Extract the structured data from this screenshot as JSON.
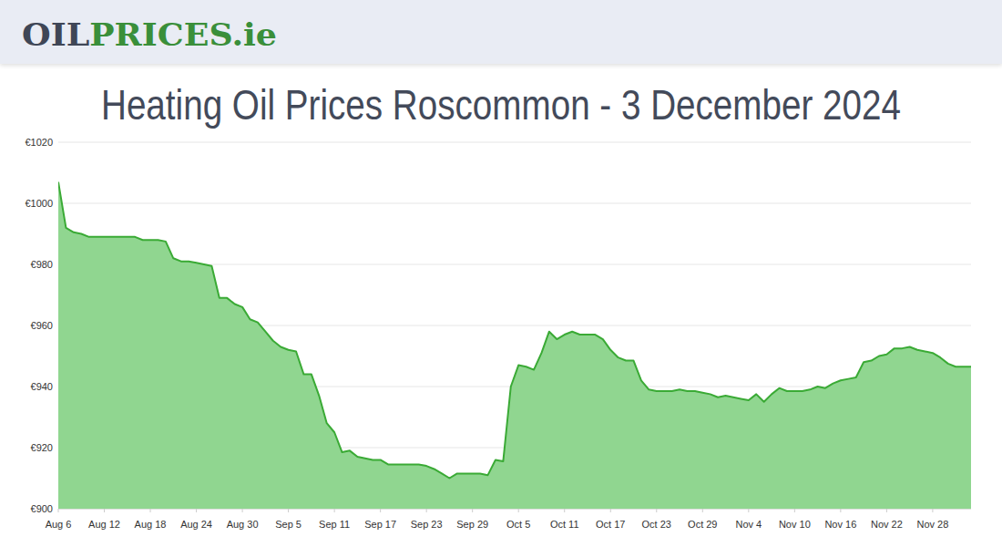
{
  "logo": {
    "dark": "OIL",
    "green": "PRICES.ie"
  },
  "chart_data": {
    "type": "area",
    "title": "Heating Oil Prices Roscommon - 3 December 2024",
    "color": "#3aaa35",
    "grid": true,
    "categories": [
      "Aug 6",
      null,
      null,
      null,
      null,
      null,
      "Aug 12",
      null,
      null,
      null,
      null,
      null,
      "Aug 18",
      null,
      null,
      null,
      null,
      null,
      "Aug 24",
      null,
      null,
      null,
      null,
      null,
      "Aug 30",
      null,
      null,
      null,
      null,
      null,
      "Sep 5",
      null,
      null,
      null,
      null,
      null,
      "Sep 11",
      null,
      null,
      null,
      null,
      null,
      "Sep 17",
      null,
      null,
      null,
      null,
      null,
      "Sep 23",
      null,
      null,
      null,
      null,
      null,
      "Sep 29",
      null,
      null,
      null,
      null,
      null,
      "Oct 5",
      null,
      null,
      null,
      null,
      null,
      "Oct 11",
      null,
      null,
      null,
      null,
      null,
      "Oct 17",
      null,
      null,
      null,
      null,
      null,
      "Oct 23",
      null,
      null,
      null,
      null,
      null,
      "Oct 29",
      null,
      null,
      null,
      null,
      null,
      "Nov 4",
      null,
      null,
      null,
      null,
      null,
      "Nov 10",
      null,
      null,
      null,
      null,
      null,
      "Nov 16",
      null,
      null,
      null,
      null,
      null,
      "Nov 22",
      null,
      null,
      null,
      null,
      null,
      "Nov 28",
      null,
      null,
      null,
      null,
      null
    ],
    "values": [
      1007,
      992,
      990.5,
      990,
      989,
      989,
      989,
      989,
      989,
      989,
      989,
      988,
      988,
      988,
      987.5,
      982,
      981,
      981,
      980.5,
      980,
      979.5,
      969,
      969,
      967,
      966,
      962,
      961,
      958,
      955,
      953,
      952,
      951.5,
      944,
      944,
      937,
      928,
      925,
      918.5,
      919,
      917,
      916.5,
      916,
      916,
      914.5,
      914.5,
      914.5,
      914.5,
      914.5,
      914,
      913,
      911.5,
      910,
      911.5,
      911.5,
      911.5,
      911.5,
      911,
      916,
      915.5,
      940,
      947,
      946.5,
      945.5,
      951,
      958,
      955.5,
      957,
      958,
      957,
      957,
      957,
      955.5,
      952,
      949.5,
      948.5,
      948.5,
      942,
      939,
      938.5,
      938.5,
      938.5,
      939,
      938.5,
      938.5,
      938,
      937.5,
      936.5,
      937,
      936.5,
      936,
      935.5,
      937.5,
      935,
      937.5,
      939.5,
      938.5,
      938.5,
      938.5,
      939,
      940,
      939.5,
      941,
      942,
      942.5,
      943,
      948,
      948.5,
      950,
      950.5,
      952.5,
      952.5,
      953,
      952,
      951.5,
      951,
      949.5,
      947.5,
      946.5,
      946.5,
      946.5
    ],
    "ylim": [
      900,
      1020
    ],
    "yticks": [
      {
        "value": 900,
        "label": "€900"
      },
      {
        "value": 920,
        "label": "€920"
      },
      {
        "value": 940,
        "label": "€940"
      },
      {
        "value": 960,
        "label": "€960"
      },
      {
        "value": 980,
        "label": "€980"
      },
      {
        "value": 1000,
        "label": "€1000"
      },
      {
        "value": 1020,
        "label": "€1020"
      }
    ]
  }
}
